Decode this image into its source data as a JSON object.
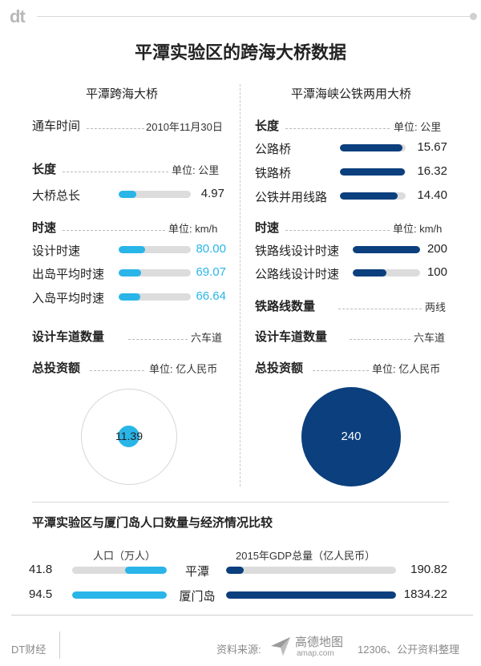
{
  "header": {
    "logo": "dt",
    "title": "平潭实验区的跨海大桥数据"
  },
  "chart_data": [
    {
      "type": "bar",
      "title": "平潭跨海大桥",
      "opened": {
        "label": "通车时间",
        "value": "2010年11月30日"
      },
      "length": {
        "label": "长度",
        "unit": "单位: 公里",
        "max": 20,
        "items": [
          {
            "label": "大桥总长",
            "value": 4.97,
            "display": "4.97"
          }
        ]
      },
      "speed": {
        "label": "时速",
        "unit": "单位: km/h",
        "max": 220,
        "items": [
          {
            "label": "设计时速",
            "value": 80.0,
            "display": "80.00"
          },
          {
            "label": "出岛平均时速",
            "value": 69.07,
            "display": "69.07"
          },
          {
            "label": "入岛平均时速",
            "value": 66.64,
            "display": "66.64"
          }
        ]
      },
      "lanes": {
        "label": "设计车道数量",
        "value": "六车道"
      },
      "investment": {
        "label": "总投资额",
        "unit": "单位: 亿人民币",
        "value": 11.39,
        "display": "11.39"
      }
    },
    {
      "type": "bar",
      "title": "平潭海峡公铁两用大桥",
      "length": {
        "label": "长度",
        "unit": "单位: 公里",
        "max": 16.5,
        "items": [
          {
            "label": "公路桥",
            "value": 15.67,
            "display": "15.67"
          },
          {
            "label": "铁路桥",
            "value": 16.32,
            "display": "16.32"
          },
          {
            "label": "公铁并用线路",
            "value": 14.4,
            "display": "14.40"
          }
        ]
      },
      "speed": {
        "label": "时速",
        "unit": "单位: km/h",
        "max": 200,
        "items": [
          {
            "label": "铁路线设计时速",
            "value": 200,
            "display": "200"
          },
          {
            "label": "公路线设计时速",
            "value": 100,
            "display": "100"
          }
        ]
      },
      "rail_lines": {
        "label": "铁路线数量",
        "value": "两线"
      },
      "lanes": {
        "label": "设计车道数量",
        "value": "六车道"
      },
      "investment": {
        "label": "总投资额",
        "unit": "单位: 亿人民币",
        "value": 240,
        "display": "240"
      }
    },
    {
      "type": "bar",
      "title": "平潭实验区与厦门岛人口数量与经济情况比较",
      "categories": [
        "平潭",
        "厦门岛"
      ],
      "series": [
        {
          "name": "人口（万人）",
          "values": [
            41.8,
            94.5
          ],
          "display": [
            "41.8",
            "94.5"
          ],
          "max": 94.5
        },
        {
          "name": "2015年GDP总量（亿人民币）",
          "values": [
            190.82,
            1834.22
          ],
          "display": [
            "190.82",
            "1834.22"
          ],
          "max": 1834.22
        }
      ]
    }
  ],
  "colors": {
    "cyan": "#29b5e8",
    "navy": "#0b3f7d",
    "track": "#dcdcdc"
  },
  "footer": {
    "brand": "DT财经",
    "source_label": "资料来源:",
    "amap_name": "高德地图",
    "amap_url": "amap.com",
    "source_rest": "12306、公开资料整理"
  }
}
